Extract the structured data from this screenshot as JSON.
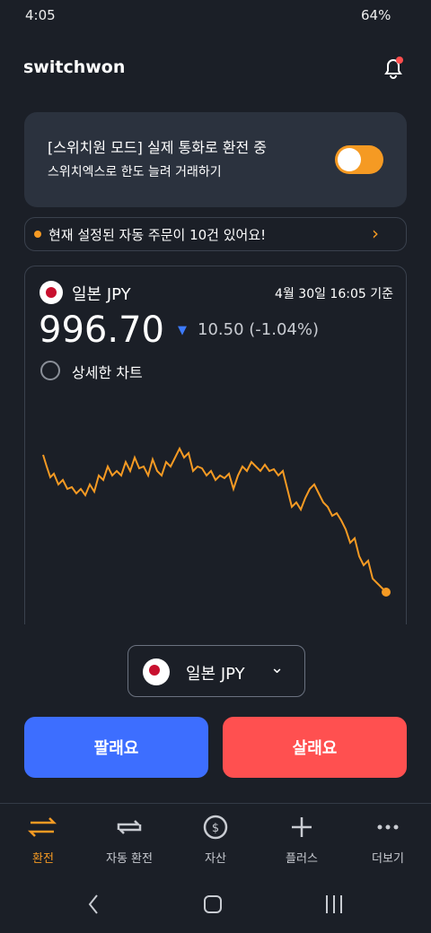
{
  "status_bar": {
    "time": "4:05",
    "battery": "64%"
  },
  "header": {
    "title": "switchwon"
  },
  "banner": {
    "title": "[스위치원 모드] 실제 통화로 환전 중",
    "link": "스위치엑스로 한도 늘려 거래하기"
  },
  "notice": {
    "text": "현재 설정된 자동 주문이 10건 있어요!"
  },
  "rate_card": {
    "currency": "일본 JPY",
    "timestamp": "4월 30일 16:05 기준",
    "rate": "996.70",
    "change": "10.50 (-1.04%)",
    "detail_option": "상세한 차트"
  },
  "currency_selector": {
    "label": "일본 JPY"
  },
  "buttons": {
    "sell": "팔래요",
    "buy": "살래요"
  },
  "nav": {
    "items": [
      "환전",
      "자동 환전",
      "자산",
      "플러스",
      "더보기"
    ]
  }
}
